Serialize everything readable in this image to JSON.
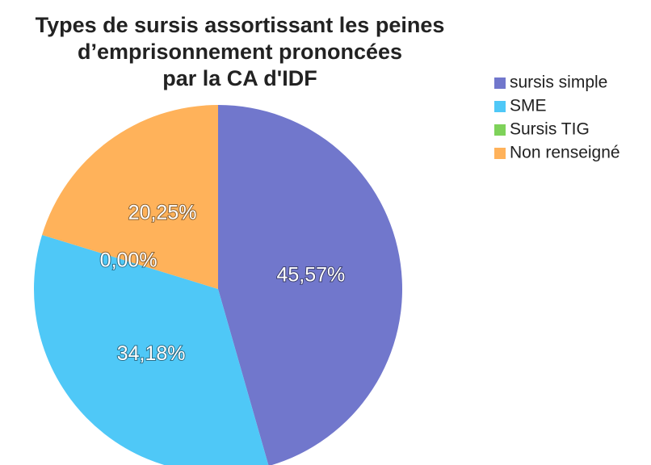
{
  "chart_data": {
    "type": "pie",
    "title": [
      "Types de sursis assortissant les peines",
      "d’emprisonnement prononcées",
      "par la CA d'IDF"
    ],
    "categories": [
      "sursis simple",
      "SME",
      "Sursis TIG",
      "Non renseigné"
    ],
    "values": [
      45.57,
      34.18,
      0,
      20.25
    ],
    "value_labels": [
      "45,57%",
      "34,18%",
      "0,00%",
      "20,25%"
    ],
    "colors": [
      "#7177cc",
      "#4fc8f7",
      "#7ed25a",
      "#ffb25a"
    ],
    "legend": "right"
  }
}
